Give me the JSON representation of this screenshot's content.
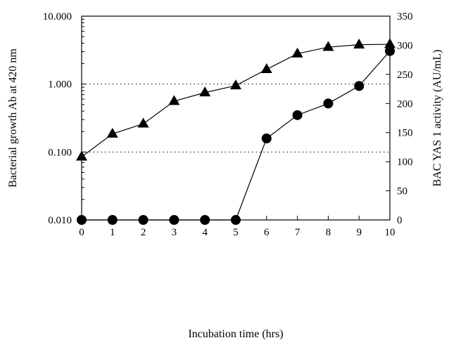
{
  "chart_data": {
    "type": "line",
    "xlabel": "Incubation time (hrs)",
    "ylabel_left": "Bacterial growth Ab at 420 nm",
    "ylabel_right": "BAC YAS 1 activity (AU/mL)",
    "x_ticks": [
      0,
      1,
      2,
      3,
      4,
      5,
      6,
      7,
      8,
      9,
      10
    ],
    "xlim": [
      0,
      10
    ],
    "y_left": {
      "scale": "log",
      "lim": [
        0.01,
        10
      ],
      "ticks": [
        0.01,
        0.1,
        1,
        10
      ],
      "tick_labels": [
        "0.010",
        "0.100",
        "1.000",
        "10.000"
      ]
    },
    "y_right": {
      "scale": "linear",
      "lim": [
        0,
        350
      ],
      "ticks": [
        0,
        50,
        100,
        150,
        200,
        250,
        300,
        350
      ],
      "tick_labels": [
        "0",
        "50",
        "100",
        "150",
        "200",
        "250",
        "300",
        "350"
      ]
    },
    "gridlines_left_dotted": [
      0.1,
      1
    ],
    "series": [
      {
        "marker": "triangle",
        "axis": "left",
        "x": [
          0,
          1,
          2,
          3,
          4,
          5,
          6,
          7,
          8,
          9,
          10
        ],
        "values": [
          0.085,
          0.185,
          0.26,
          0.56,
          0.75,
          0.95,
          1.65,
          2.8,
          3.5,
          3.8,
          3.85
        ]
      },
      {
        "marker": "circle",
        "axis": "right",
        "x": [
          0,
          1,
          2,
          3,
          4,
          5,
          6,
          7,
          8,
          9,
          10
        ],
        "values": [
          0,
          0,
          0,
          0,
          0,
          0,
          140,
          180,
          200,
          230,
          290
        ]
      }
    ],
    "colors": {
      "line": "#000000",
      "marker": "#000000",
      "grid": "#000000"
    }
  }
}
